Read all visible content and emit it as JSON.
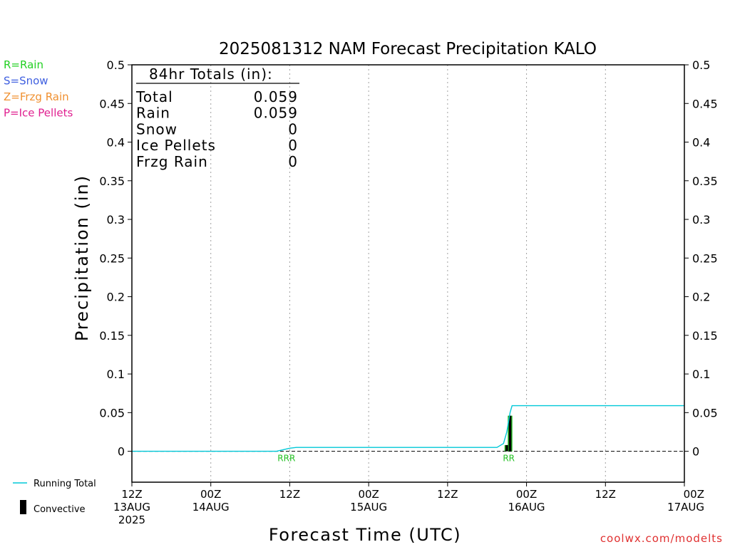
{
  "chart_data": {
    "type": "line",
    "title": "2025081312 NAM Forecast Precipitation KALO",
    "xlabel": "Forecast Time (UTC)",
    "ylabel": "Precipitation (in)",
    "ylim": [
      -0.04,
      0.5
    ],
    "yticks": [
      0,
      0.05,
      0.1,
      0.15,
      0.2,
      0.25,
      0.3,
      0.35,
      0.4,
      0.45,
      0.5
    ],
    "ytick_labels": [
      "0",
      "0.05",
      "0.1",
      "0.15",
      "0.2",
      "0.25",
      "0.3",
      "0.35",
      "0.4",
      "0.45",
      "0.5"
    ],
    "xlim_hours": [
      0,
      84
    ],
    "xticks": [
      {
        "hour": 0,
        "lines": [
          "12Z",
          "13AUG",
          "2025"
        ]
      },
      {
        "hour": 12,
        "lines": [
          "00Z",
          "14AUG"
        ]
      },
      {
        "hour": 24,
        "lines": [
          "12Z"
        ]
      },
      {
        "hour": 36,
        "lines": [
          "00Z",
          "15AUG"
        ]
      },
      {
        "hour": 48,
        "lines": [
          "12Z"
        ]
      },
      {
        "hour": 60,
        "lines": [
          "00Z",
          "16AUG"
        ]
      },
      {
        "hour": 72,
        "lines": [
          "12Z"
        ]
      },
      {
        "hour": 84,
        "lines": [
          "00Z",
          "17AUG"
        ]
      }
    ],
    "grid": "vertical dotted",
    "series": [
      {
        "name": "Running Total",
        "color": "#00c8d8",
        "points": [
          [
            0,
            0
          ],
          [
            22,
            0
          ],
          [
            23,
            0.002
          ],
          [
            24,
            0.004
          ],
          [
            25,
            0.005
          ],
          [
            55.5,
            0.005
          ],
          [
            56.5,
            0.01
          ],
          [
            57,
            0.025
          ],
          [
            57.5,
            0.05
          ],
          [
            57.8,
            0.059
          ],
          [
            84,
            0.059
          ]
        ]
      },
      {
        "name": "Convective",
        "color": "#000000",
        "bars": [
          [
            57,
            0.008
          ],
          [
            57.5,
            0.046
          ]
        ]
      }
    ],
    "rain_bars": [
      {
        "hour": 57,
        "value": 0.008
      },
      {
        "hour": 57.5,
        "value": 0.046
      }
    ],
    "ptype_markers": [
      {
        "hour": 23.5,
        "label": "RRR",
        "color": "#22c022"
      },
      {
        "hour": 57.3,
        "label": "RR",
        "color": "#22c022"
      }
    ],
    "totals": {
      "heading": "84hr Totals (in):",
      "rows": [
        {
          "label": "Total",
          "value": "0.059"
        },
        {
          "label": "Rain",
          "value": "0.059"
        },
        {
          "label": "Snow",
          "value": "0"
        },
        {
          "label": "Ice Pellets",
          "value": "0"
        },
        {
          "label": "Frzg Rain",
          "value": "0"
        }
      ]
    },
    "ptype_legend": [
      {
        "text": "R=Rain",
        "color": "#22d022"
      },
      {
        "text": "S=Snow",
        "color": "#4060e0"
      },
      {
        "text": "Z=Frzg Rain",
        "color": "#f09030"
      },
      {
        "text": "P=Ice Pellets",
        "color": "#e02090"
      }
    ],
    "line_legend": [
      {
        "text": "Running Total",
        "color": "#00c8d8"
      },
      {
        "text": "Convective",
        "color": "#000000"
      }
    ],
    "watermark": "coolwx.com/modelts",
    "watermark_color": "#e03030"
  }
}
